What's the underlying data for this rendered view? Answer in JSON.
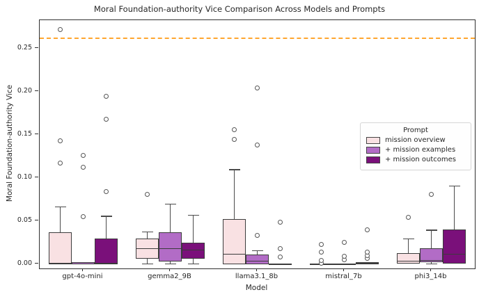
{
  "chart_data": {
    "type": "boxplot",
    "title": "Moral Foundation-authority Vice Comparison Across Models and Prompts",
    "xlabel": "Model",
    "ylabel": "Moral Foundation-authority Vice",
    "categories": [
      "gpt-4o-mini",
      "gemma2_9B",
      "llama3.1_8b",
      "mistral_7b",
      "phi3_14b"
    ],
    "yticks": [
      0.0,
      0.05,
      0.1,
      0.15,
      0.2,
      0.25
    ],
    "ylim": [
      -0.005,
      0.283
    ],
    "grid": false,
    "reference_line": {
      "y": 0.262,
      "color": "#ffa62e",
      "style": "dashed"
    },
    "legend": {
      "title": "Prompt",
      "position": "center-right"
    },
    "box_edge_color": "#3b3b3b",
    "series": [
      {
        "name": "mission overview",
        "color": "#f9e1e3",
        "boxes": [
          {
            "whislo": 0,
            "q1": 0,
            "med": 0.001,
            "q3": 0.037,
            "whishi": 0.067,
            "fliers": [
              0.117,
              0.143,
              0.272
            ]
          },
          {
            "whislo": 0,
            "q1": 0.006,
            "med": 0.018,
            "q3": 0.03,
            "whishi": 0.038,
            "fliers": [
              0.081
            ]
          },
          {
            "whislo": 0,
            "q1": 0,
            "med": 0.011,
            "q3": 0.052,
            "whishi": 0.11,
            "fliers": [
              0.145,
              0.156
            ]
          },
          {
            "whislo": 0,
            "q1": 0,
            "med": 0.0,
            "q3": 0.001,
            "whishi": 0.001,
            "fliers": [
              0.001,
              0.004,
              0.014,
              0.023
            ]
          },
          {
            "whislo": 0,
            "q1": 0.001,
            "med": 0.003,
            "q3": 0.013,
            "whishi": 0.03,
            "fliers": [
              0.054
            ]
          }
        ]
      },
      {
        "name": "+ mission examples",
        "color": "#b26cc6",
        "boxes": [
          {
            "whislo": 0,
            "q1": 0,
            "med": 0.0,
            "q3": 0.002,
            "whishi": 0.002,
            "fliers": [
              0.055,
              0.112,
              0.126
            ]
          },
          {
            "whislo": 0,
            "q1": 0.003,
            "med": 0.018,
            "q3": 0.037,
            "whishi": 0.07,
            "fliers": []
          },
          {
            "whislo": 0,
            "q1": 0,
            "med": 0.003,
            "q3": 0.011,
            "whishi": 0.016,
            "fliers": [
              0.033,
              0.138,
              0.204
            ]
          },
          {
            "whislo": 0,
            "q1": 0,
            "med": 0.0,
            "q3": 0.001,
            "whishi": 0.001,
            "fliers": [
              0.005,
              0.009,
              0.025
            ]
          },
          {
            "whislo": 0,
            "q1": 0.002,
            "med": 0.004,
            "q3": 0.018,
            "whishi": 0.04,
            "fliers": [
              0.081
            ]
          }
        ]
      },
      {
        "name": "+ mission outcomes",
        "color": "#7a107a",
        "boxes": [
          {
            "whislo": 0,
            "q1": 0,
            "med": 0.001,
            "q3": 0.03,
            "whishi": 0.056,
            "fliers": [
              0.084,
              0.168,
              0.195
            ]
          },
          {
            "whislo": 0,
            "q1": 0.006,
            "med": 0.016,
            "q3": 0.025,
            "whishi": 0.057,
            "fliers": []
          },
          {
            "whislo": 0,
            "q1": 0,
            "med": 0.0,
            "q3": 0.001,
            "whishi": 0.001,
            "fliers": [
              0.008,
              0.018,
              0.049
            ]
          },
          {
            "whislo": 0,
            "q1": 0,
            "med": 0.001,
            "q3": 0.002,
            "whishi": 0.002,
            "fliers": [
              0.007,
              0.01,
              0.014,
              0.04
            ]
          },
          {
            "whislo": 0,
            "q1": 0.001,
            "med": 0.011,
            "q3": 0.04,
            "whishi": 0.091,
            "fliers": []
          }
        ]
      }
    ]
  }
}
